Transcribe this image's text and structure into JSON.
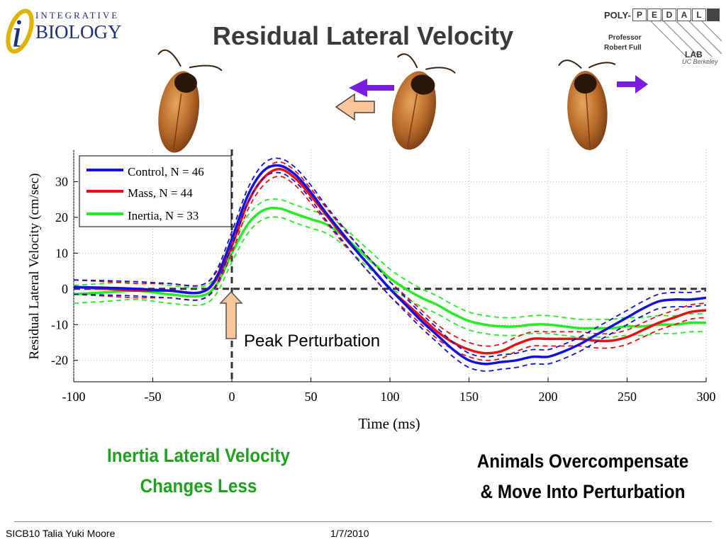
{
  "header": {
    "title": "Residual Lateral Velocity",
    "logo_left": {
      "line1": "INTEGRATIVE",
      "line2": "BIOLOGY"
    },
    "logo_right": {
      "brand_prefix": "POLY-",
      "letters": [
        "P",
        "E",
        "D",
        "A",
        "L"
      ],
      "person_title": "Professor",
      "person_name": "Robert Full",
      "lab": "LAB",
      "institution": "UC Berkeley"
    }
  },
  "annotation": {
    "peak_label": "Peak Perturbation"
  },
  "captions": {
    "left_line1": "Inertia Lateral Velocity",
    "left_line2": "Changes Less",
    "right_line1": "Animals Overcompensate",
    "right_line2": "& Move Into Perturbation"
  },
  "footer": {
    "left": "SICB10 Talia Yuki Moore",
    "center": "1/7/2010"
  },
  "colors": {
    "control": "#1010e0",
    "mass": "#e81010",
    "inertia": "#22ee22",
    "arrow_fill": "#f9c69a",
    "arrow_purple": "#7a1de0"
  },
  "icons": [
    "cockroach-icon",
    "perturbation-arrow-icon",
    "direction-arrow-icon"
  ],
  "chart_data": {
    "type": "line",
    "xlabel": "Time (ms)",
    "ylabel": "Residual Lateral Velocity (cm/sec)",
    "xlim": [
      -100,
      300
    ],
    "ylim": [
      -26,
      39
    ],
    "xticks": [
      -100,
      -50,
      0,
      50,
      100,
      150,
      200,
      250,
      300
    ],
    "yticks": [
      -20,
      -10,
      0,
      10,
      20,
      30
    ],
    "grid": true,
    "legend_position": "top-left",
    "reference_lines": {
      "y_zero": 0,
      "x_zero": 0
    },
    "x": [
      -100,
      -80,
      -60,
      -40,
      -20,
      -10,
      0,
      10,
      20,
      30,
      40,
      50,
      60,
      70,
      80,
      90,
      100,
      110,
      120,
      130,
      140,
      150,
      160,
      170,
      180,
      190,
      200,
      210,
      220,
      230,
      240,
      250,
      260,
      270,
      280,
      290,
      300
    ],
    "series": [
      {
        "name": "Control, N = 46",
        "color_key": "control",
        "values": [
          0.5,
          0.3,
          0,
          -0.5,
          -1,
          3,
          14,
          26,
          33,
          34.5,
          32,
          27,
          21,
          15.5,
          10,
          5,
          0,
          -4.5,
          -9,
          -13,
          -17,
          -20,
          -21,
          -20.5,
          -20,
          -19,
          -19,
          -17.5,
          -15.5,
          -13,
          -10.5,
          -8,
          -5.5,
          -3.5,
          -3,
          -3,
          -2.5
        ],
        "band": 2
      },
      {
        "name": "Mass, N = 44",
        "color_key": "mass",
        "values": [
          0.5,
          0,
          -0.5,
          -0.5,
          -1,
          2.5,
          12,
          24,
          31,
          33.5,
          31,
          26,
          20.5,
          15,
          10,
          5,
          0,
          -4,
          -8,
          -12,
          -15,
          -17,
          -18,
          -17.5,
          -15.5,
          -14,
          -14,
          -14,
          -14,
          -14.5,
          -14.5,
          -13.5,
          -11.5,
          -9.5,
          -8,
          -6.5,
          -6
        ],
        "band": 2
      },
      {
        "name": "Inertia, N = 33",
        "color_key": "inertia",
        "values": [
          -1.5,
          -1,
          -0.5,
          -1.5,
          -2,
          1,
          10,
          18,
          22,
          22.5,
          21,
          19.5,
          18,
          15,
          11,
          7,
          3,
          0,
          -2.5,
          -4.5,
          -7,
          -9,
          -10,
          -10.5,
          -10.5,
          -10,
          -10,
          -10.5,
          -11,
          -11,
          -11,
          -10.5,
          -10.5,
          -10,
          -10,
          -9.5,
          -9.5
        ],
        "band": 2.5
      }
    ]
  }
}
